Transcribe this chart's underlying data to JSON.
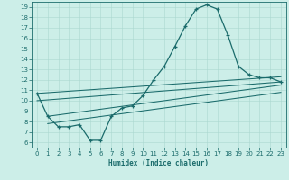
{
  "title": "",
  "xlabel": "Humidex (Indice chaleur)",
  "bg_color": "#cceee8",
  "line_color": "#1a6b6b",
  "grid_color": "#aad8d0",
  "xlim": [
    -0.5,
    23.5
  ],
  "ylim": [
    5.5,
    19.5
  ],
  "yticks": [
    6,
    7,
    8,
    9,
    10,
    11,
    12,
    13,
    14,
    15,
    16,
    17,
    18,
    19
  ],
  "xticks": [
    0,
    1,
    2,
    3,
    4,
    5,
    6,
    7,
    8,
    9,
    10,
    11,
    12,
    13,
    14,
    15,
    16,
    17,
    18,
    19,
    20,
    21,
    22,
    23
  ],
  "main_series": [
    [
      0,
      10.7
    ],
    [
      1,
      8.5
    ],
    [
      2,
      7.5
    ],
    [
      3,
      7.5
    ],
    [
      4,
      7.7
    ],
    [
      5,
      6.2
    ],
    [
      6,
      6.2
    ],
    [
      7,
      8.5
    ],
    [
      8,
      9.3
    ],
    [
      9,
      9.5
    ],
    [
      10,
      10.5
    ],
    [
      11,
      12.0
    ],
    [
      12,
      13.3
    ],
    [
      13,
      15.2
    ],
    [
      14,
      17.2
    ],
    [
      15,
      18.8
    ],
    [
      16,
      19.2
    ],
    [
      17,
      18.8
    ],
    [
      18,
      16.3
    ],
    [
      19,
      13.3
    ],
    [
      20,
      12.5
    ],
    [
      21,
      12.2
    ],
    [
      22,
      12.2
    ],
    [
      23,
      11.8
    ]
  ],
  "trend_lines": [
    [
      [
        0,
        10.7
      ],
      [
        23,
        12.3
      ]
    ],
    [
      [
        0,
        10.0
      ],
      [
        23,
        11.8
      ]
    ],
    [
      [
        1,
        8.5
      ],
      [
        23,
        11.5
      ]
    ],
    [
      [
        1,
        7.8
      ],
      [
        23,
        10.8
      ]
    ]
  ]
}
